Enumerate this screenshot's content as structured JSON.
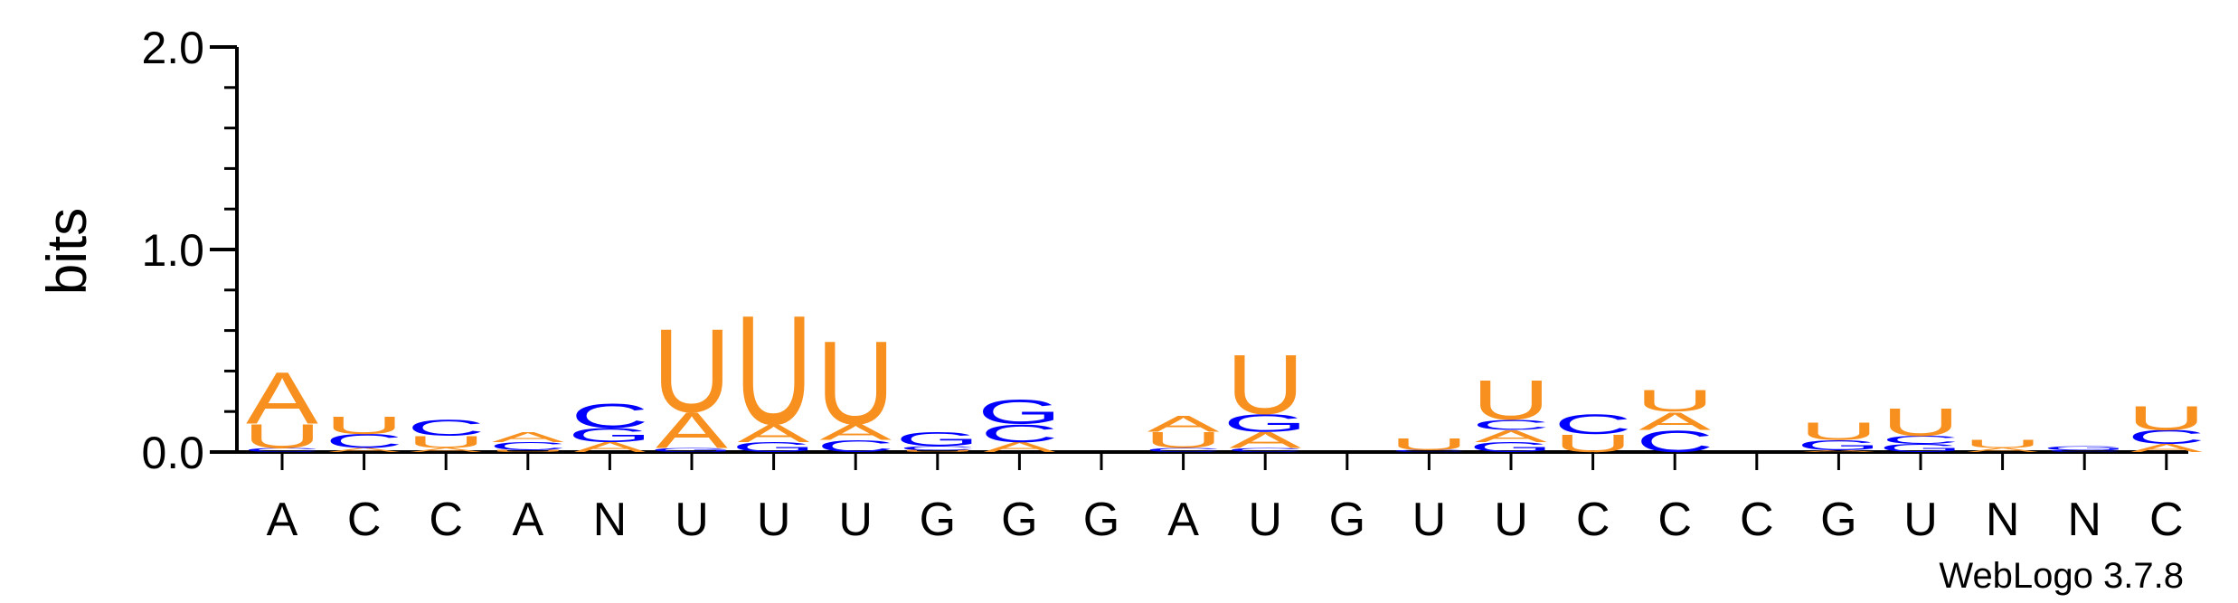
{
  "chart_data": {
    "type": "sequence-logo",
    "ylabel": "bits",
    "ylim": [
      0,
      2.0
    ],
    "yticks": [
      "0.0",
      "1.0",
      "2.0"
    ],
    "colors": {
      "A": "#f7901e",
      "U": "#f7901e",
      "C": "#0000ff",
      "G": "#0000ff"
    },
    "credit": "WebLogo 3.7.8",
    "positions": [
      {
        "label": "A",
        "stack": [
          {
            "letter": "C",
            "bits": 0.02
          },
          {
            "letter": "U",
            "bits": 0.12
          },
          {
            "letter": "A",
            "bits": 0.26
          }
        ]
      },
      {
        "label": "C",
        "stack": [
          {
            "letter": "A",
            "bits": 0.02
          },
          {
            "letter": "C",
            "bits": 0.07
          },
          {
            "letter": "U",
            "bits": 0.09
          }
        ]
      },
      {
        "label": "C",
        "stack": [
          {
            "letter": "A",
            "bits": 0.02
          },
          {
            "letter": "U",
            "bits": 0.06
          },
          {
            "letter": "C",
            "bits": 0.08
          }
        ]
      },
      {
        "label": "A",
        "stack": [
          {
            "letter": "U",
            "bits": 0.01
          },
          {
            "letter": "C",
            "bits": 0.04
          },
          {
            "letter": "A",
            "bits": 0.05
          }
        ]
      },
      {
        "label": "N",
        "stack": [
          {
            "letter": "A",
            "bits": 0.05
          },
          {
            "letter": "G",
            "bits": 0.07
          },
          {
            "letter": "C",
            "bits": 0.12
          }
        ]
      },
      {
        "label": "U",
        "stack": [
          {
            "letter": "G",
            "bits": 0.02
          },
          {
            "letter": "A",
            "bits": 0.18
          },
          {
            "letter": "U",
            "bits": 0.42
          }
        ]
      },
      {
        "label": "U",
        "stack": [
          {
            "letter": "G",
            "bits": 0.05
          },
          {
            "letter": "A",
            "bits": 0.09
          },
          {
            "letter": "U",
            "bits": 0.55
          }
        ]
      },
      {
        "label": "U",
        "stack": [
          {
            "letter": "C",
            "bits": 0.06
          },
          {
            "letter": "A",
            "bits": 0.08
          },
          {
            "letter": "U",
            "bits": 0.42
          }
        ]
      },
      {
        "label": "G",
        "stack": [
          {
            "letter": "U",
            "bits": 0.01
          },
          {
            "letter": "C",
            "bits": 0.02
          },
          {
            "letter": "G",
            "bits": 0.07
          }
        ]
      },
      {
        "label": "G",
        "stack": [
          {
            "letter": "A",
            "bits": 0.05
          },
          {
            "letter": "C",
            "bits": 0.09
          },
          {
            "letter": "G",
            "bits": 0.12
          }
        ]
      },
      {
        "label": "G",
        "stack": []
      },
      {
        "label": "A",
        "stack": [
          {
            "letter": "C",
            "bits": 0.02
          },
          {
            "letter": "U",
            "bits": 0.08
          },
          {
            "letter": "A",
            "bits": 0.08
          }
        ]
      },
      {
        "label": "U",
        "stack": [
          {
            "letter": "C",
            "bits": 0.02
          },
          {
            "letter": "A",
            "bits": 0.08
          },
          {
            "letter": "G",
            "bits": 0.09
          },
          {
            "letter": "U",
            "bits": 0.3
          }
        ]
      },
      {
        "label": "G",
        "stack": []
      },
      {
        "label": "U",
        "stack": [
          {
            "letter": "C",
            "bits": 0.01
          },
          {
            "letter": "U",
            "bits": 0.06
          }
        ]
      },
      {
        "label": "U",
        "stack": [
          {
            "letter": "G",
            "bits": 0.05
          },
          {
            "letter": "A",
            "bits": 0.06
          },
          {
            "letter": "C",
            "bits": 0.05
          },
          {
            "letter": "U",
            "bits": 0.2
          }
        ]
      },
      {
        "label": "C",
        "stack": [
          {
            "letter": "U",
            "bits": 0.09
          },
          {
            "letter": "C",
            "bits": 0.1
          }
        ]
      },
      {
        "label": "C",
        "stack": [
          {
            "letter": "C",
            "bits": 0.11
          },
          {
            "letter": "A",
            "bits": 0.09
          },
          {
            "letter": "U",
            "bits": 0.11
          }
        ]
      },
      {
        "label": "C",
        "stack": []
      },
      {
        "label": "G",
        "stack": [
          {
            "letter": "A",
            "bits": 0.01
          },
          {
            "letter": "G",
            "bits": 0.05
          },
          {
            "letter": "U",
            "bits": 0.09
          }
        ]
      },
      {
        "label": "U",
        "stack": [
          {
            "letter": "G",
            "bits": 0.04
          },
          {
            "letter": "C",
            "bits": 0.04
          },
          {
            "letter": "U",
            "bits": 0.14
          }
        ]
      },
      {
        "label": "N",
        "stack": [
          {
            "letter": "A",
            "bits": 0.02
          },
          {
            "letter": "U",
            "bits": 0.04
          }
        ]
      },
      {
        "label": "N",
        "stack": [
          {
            "letter": "C",
            "bits": 0.01
          },
          {
            "letter": "G",
            "bits": 0.02
          }
        ]
      },
      {
        "label": "C",
        "stack": [
          {
            "letter": "A",
            "bits": 0.04
          },
          {
            "letter": "C",
            "bits": 0.07
          },
          {
            "letter": "U",
            "bits": 0.12
          }
        ]
      }
    ]
  }
}
